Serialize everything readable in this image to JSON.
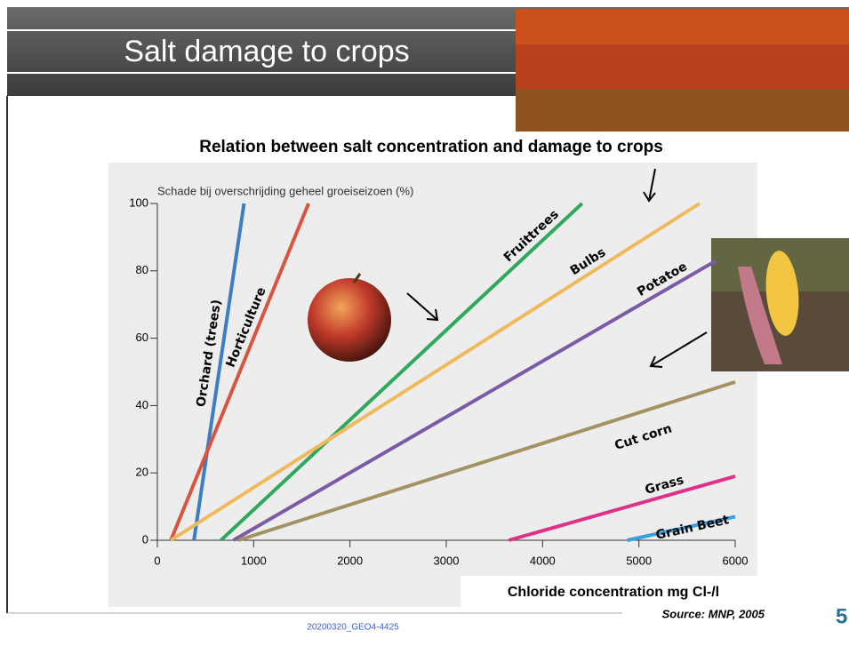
{
  "slide": {
    "title": "Salt damage to crops",
    "footer": "20200320_GEO4-4425",
    "source": "Source: MNP, 2005",
    "page_number": "5"
  },
  "chart_data": {
    "type": "line",
    "title": "Relation between salt concentration and damage to crops",
    "y_label": "Schade bij overschrijding geheel groeiseizoen (%)",
    "x_label": "Chloride concentration mg Cl-/l",
    "xlim": [
      0,
      6000
    ],
    "xticks": [
      0,
      1000,
      2000,
      3000,
      4000,
      5000,
      6000
    ],
    "ylim": [
      0,
      100
    ],
    "yticks": [
      0,
      20,
      40,
      60,
      80,
      100
    ],
    "series": [
      {
        "name": "Orchard (trees)",
        "color": "#3b7fc2",
        "x": [
          380,
          900
        ],
        "values": [
          0,
          100
        ]
      },
      {
        "name": "Horticulture",
        "color": "#d9533f",
        "x": [
          140,
          1570
        ],
        "values": [
          0,
          100
        ]
      },
      {
        "name": "Fruittrees",
        "color": "#2ea85a",
        "x": [
          660,
          4410
        ],
        "values": [
          0,
          100
        ]
      },
      {
        "name": "Bulbs",
        "color": "#f0b95c",
        "x": [
          140,
          5630
        ],
        "values": [
          0,
          100
        ]
      },
      {
        "name": "Potatoe",
        "color": "#7b5aa6",
        "x": [
          790,
          5800
        ],
        "values": [
          0,
          83
        ]
      },
      {
        "name": "Cut corn",
        "color": "#a39262",
        "x": [
          840,
          6000
        ],
        "values": [
          0,
          47
        ]
      },
      {
        "name": "Grass",
        "color": "#e0308a",
        "x": [
          3650,
          6000
        ],
        "values": [
          0,
          19
        ]
      },
      {
        "name": "Grain Beet",
        "color": "#3aa0e0",
        "x": [
          4880,
          6000
        ],
        "values": [
          0,
          7
        ]
      }
    ]
  }
}
